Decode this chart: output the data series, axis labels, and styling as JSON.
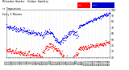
{
  "title_line1": "Milwaukee Weather  Outdoor Humidity",
  "title_line2": "vs Temperature",
  "title_line3": "Every 5 Minutes",
  "bg_color": "#ffffff",
  "plot_bg": "#ffffff",
  "humidity_color": "#0000ff",
  "temp_color": "#ff0000",
  "legend_bar1_color": "#ff0000",
  "legend_bar2_color": "#0000cc",
  "grid_color": "#d0d0d0",
  "point_size": 0.8,
  "ylim": [
    20,
    100
  ],
  "n_points": 288,
  "title_fontsize": 2.0,
  "tick_fontsize": 1.8,
  "ytick_fontsize": 2.2
}
